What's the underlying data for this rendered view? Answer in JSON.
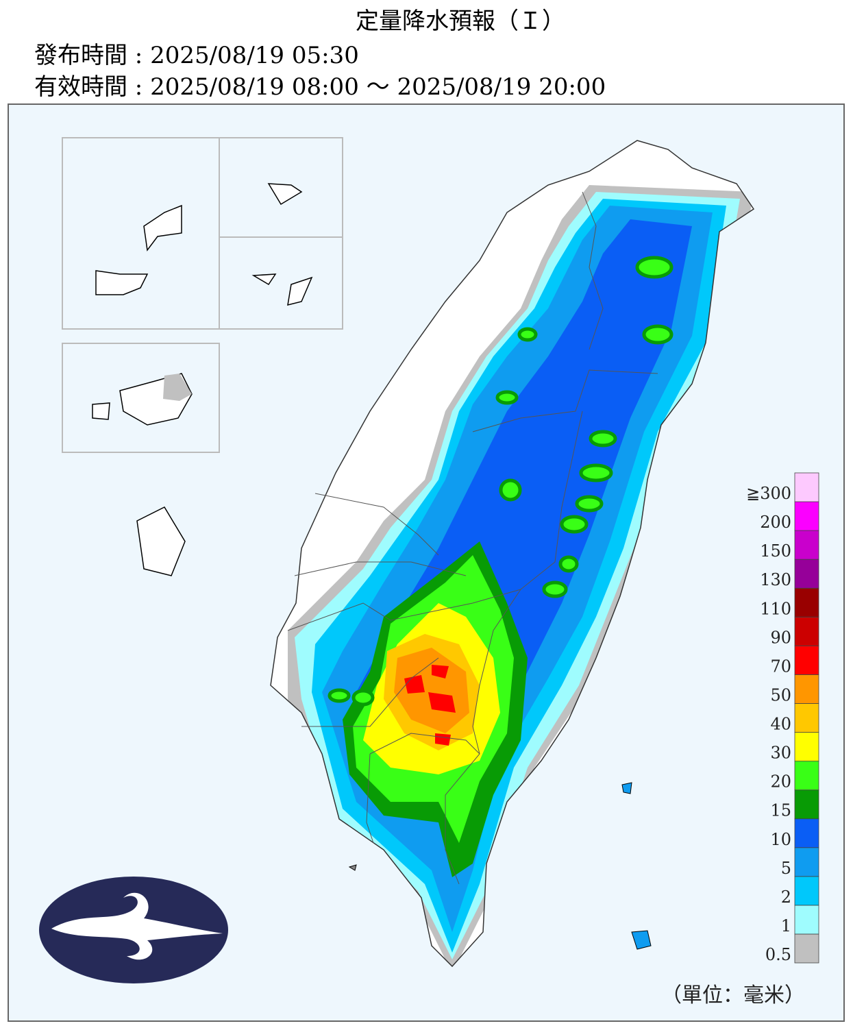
{
  "header": {
    "title": "定量降水預報（Ｉ）",
    "issued": "發布時間 : 2025/08/19 05:30",
    "valid": "有效時間 : 2025/08/19 08:00 ～ 2025/08/19 20:00"
  },
  "legend": {
    "unit": "（單位：毫米）",
    "levels": [
      {
        "label": "0.5",
        "color": "#c0c0c0"
      },
      {
        "label": "1",
        "color": "#9ffcfe"
      },
      {
        "label": "2",
        "color": "#00c8fb"
      },
      {
        "label": "5",
        "color": "#0f9cf0"
      },
      {
        "label": "10",
        "color": "#0a5ef5"
      },
      {
        "label": "15",
        "color": "#089b05"
      },
      {
        "label": "20",
        "color": "#39ff16"
      },
      {
        "label": "30",
        "color": "#ffff00"
      },
      {
        "label": "40",
        "color": "#ffc800"
      },
      {
        "label": "50",
        "color": "#ff9600"
      },
      {
        "label": "70",
        "color": "#ff0000"
      },
      {
        "label": "90",
        "color": "#cc0000"
      },
      {
        "label": "110",
        "color": "#990000"
      },
      {
        "label": "130",
        "color": "#960099"
      },
      {
        "label": "150",
        "color": "#c900cc"
      },
      {
        "label": "200",
        "color": "#fb00ff"
      },
      {
        "label": "≧300",
        "color": "#fdc9fe"
      }
    ]
  }
}
